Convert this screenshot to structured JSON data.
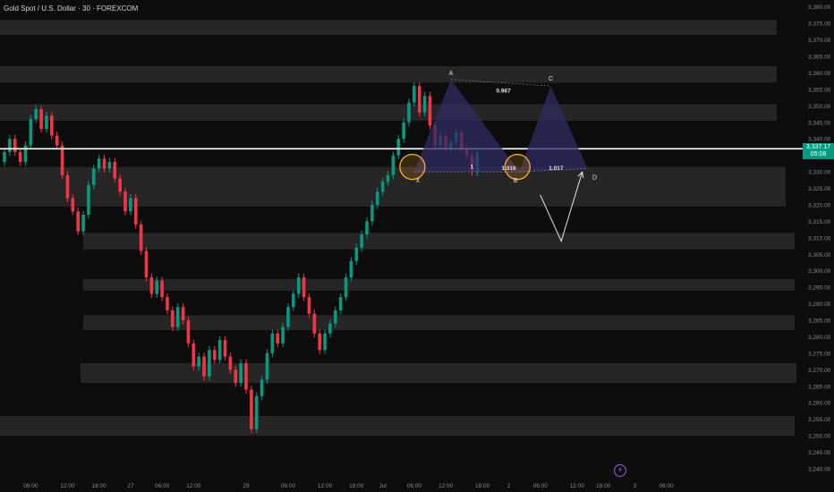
{
  "header": {
    "symbol_title": "Gold Spot / U.S. Dollar · 30 · FOREXCOM"
  },
  "current_price": {
    "price": "3,337.17",
    "countdown": "05:08",
    "value": 3337.17,
    "color": "#089981"
  },
  "timeframe_icon": {
    "name": "lightning-icon",
    "glyph": "⚡"
  },
  "colors": {
    "background": "#0d0d0d",
    "zone": "#2b2b2b",
    "bull": "#089981",
    "bear": "#f23645",
    "pattern_fill": "#2f2b63",
    "circle": "#f5a623",
    "axis_text": "#8a8a8a",
    "label_text": "#e0e0e0"
  },
  "chart_data": {
    "type": "candlestick",
    "title": "Gold Spot / U.S. Dollar · 30 · FOREXCOM",
    "y_axis": {
      "side": "right",
      "range": [
        3240,
        3381
      ],
      "ticks": [
        "3,380.00",
        "3,375.00",
        "3,370.00",
        "3,365.00",
        "3,360.00",
        "3,355.00",
        "3,350.00",
        "3,345.00",
        "3,340.00",
        "3,335.00",
        "3,330.00",
        "3,325.00",
        "3,320.00",
        "3,315.00",
        "3,310.00",
        "3,305.00",
        "3,300.00",
        "3,295.00",
        "3,290.00",
        "3,285.00",
        "3,280.00",
        "3,275.00",
        "3,270.00",
        "3,265.00",
        "3,260.00",
        "3,255.00",
        "3,250.00",
        "3,245.00",
        "3,240.00"
      ]
    },
    "x_axis": {
      "range": [
        0,
        133
      ],
      "ticks": [
        {
          "x": 5,
          "label": "06:00"
        },
        {
          "x": 12,
          "label": "12:00"
        },
        {
          "x": 18,
          "label": "18:00"
        },
        {
          "x": 24,
          "label": "27"
        },
        {
          "x": 30,
          "label": "06:00"
        },
        {
          "x": 36,
          "label": "12:00"
        },
        {
          "x": 46,
          "label": "29"
        },
        {
          "x": 54,
          "label": "06:00"
        },
        {
          "x": 61,
          "label": "12:00"
        },
        {
          "x": 67,
          "label": "18:00"
        },
        {
          "x": 72,
          "label": "Jul"
        },
        {
          "x": 78,
          "label": "06:00"
        },
        {
          "x": 84,
          "label": "12:00"
        },
        {
          "x": 91,
          "label": "18:00"
        },
        {
          "x": 96,
          "label": "2"
        },
        {
          "x": 102,
          "label": "06:00"
        },
        {
          "x": 109,
          "label": "12:00"
        },
        {
          "x": 114,
          "label": "18:00"
        },
        {
          "x": 120,
          "label": "3"
        },
        {
          "x": 126,
          "label": "06:00"
        }
      ]
    },
    "zones": [
      [
        3376,
        3371.5
      ],
      [
        3362,
        3357
      ],
      [
        3350.5,
        3345.5
      ],
      [
        3331.5,
        3319.5
      ],
      [
        3311.5,
        3306.5
      ],
      [
        3297.5,
        3294
      ],
      [
        3286.5,
        3282
      ],
      [
        3272,
        3266
      ],
      [
        3256,
        3250
      ]
    ],
    "horizontal_line": 3337,
    "candles": [
      [
        3333,
        3336
      ],
      [
        3336,
        3340
      ],
      [
        3340,
        3336
      ],
      [
        3336,
        3333
      ],
      [
        3333,
        3338
      ],
      [
        3338,
        3346
      ],
      [
        3346,
        3349
      ],
      [
        3349,
        3343
      ],
      [
        3343,
        3347
      ],
      [
        3347,
        3341
      ],
      [
        3341,
        3338
      ],
      [
        3338,
        3329
      ],
      [
        3329,
        3322
      ],
      [
        3322,
        3318
      ],
      [
        3318,
        3312
      ],
      [
        3312,
        3317
      ],
      [
        3317,
        3326
      ],
      [
        3326,
        3331
      ],
      [
        3331,
        3334
      ],
      [
        3334,
        3331
      ],
      [
        3331,
        3333
      ],
      [
        3333,
        3328
      ],
      [
        3328,
        3324
      ],
      [
        3324,
        3318
      ],
      [
        3318,
        3322
      ],
      [
        3322,
        3314
      ],
      [
        3314,
        3306
      ],
      [
        3306,
        3298
      ],
      [
        3298,
        3293
      ],
      [
        3293,
        3297
      ],
      [
        3297,
        3292
      ],
      [
        3292,
        3288
      ],
      [
        3288,
        3283
      ],
      [
        3283,
        3289
      ],
      [
        3289,
        3285
      ],
      [
        3285,
        3278
      ],
      [
        3278,
        3271
      ],
      [
        3271,
        3274
      ],
      [
        3274,
        3268
      ],
      [
        3268,
        3276
      ],
      [
        3276,
        3273
      ],
      [
        3273,
        3279
      ],
      [
        3279,
        3274
      ],
      [
        3274,
        3270
      ],
      [
        3270,
        3266
      ],
      [
        3266,
        3272
      ],
      [
        3272,
        3264
      ],
      [
        3264,
        3252
      ],
      [
        3252,
        3262
      ],
      [
        3262,
        3267
      ],
      [
        3267,
        3275
      ],
      [
        3275,
        3281
      ],
      [
        3281,
        3278
      ],
      [
        3278,
        3283
      ],
      [
        3283,
        3289
      ],
      [
        3289,
        3293
      ],
      [
        3293,
        3298
      ],
      [
        3298,
        3292
      ],
      [
        3292,
        3287
      ],
      [
        3287,
        3281
      ],
      [
        3281,
        3276
      ],
      [
        3276,
        3281
      ],
      [
        3281,
        3284
      ],
      [
        3284,
        3288
      ],
      [
        3288,
        3292
      ],
      [
        3292,
        3298
      ],
      [
        3298,
        3303
      ],
      [
        3303,
        3307
      ],
      [
        3307,
        3311
      ],
      [
        3311,
        3315
      ],
      [
        3315,
        3320
      ],
      [
        3320,
        3324
      ],
      [
        3324,
        3327
      ],
      [
        3327,
        3329
      ],
      [
        3329,
        3335
      ],
      [
        3335,
        3340
      ],
      [
        3340,
        3345
      ],
      [
        3345,
        3351
      ],
      [
        3351,
        3356
      ],
      [
        3356,
        3348
      ],
      [
        3348,
        3353
      ],
      [
        3353,
        3344
      ],
      [
        3344,
        3338
      ],
      [
        3338,
        3341
      ],
      [
        3341,
        3337
      ],
      [
        3337,
        3339
      ],
      [
        3339,
        3342
      ],
      [
        3342,
        3337
      ],
      [
        3337,
        3335
      ],
      [
        3335,
        3330
      ],
      [
        3330,
        3336
      ]
    ],
    "pattern": {
      "name": "XABCD",
      "points": [
        {
          "label": "X",
          "x": 78,
          "y": 3330
        },
        {
          "label": "A",
          "x": 85,
          "y": 3358
        },
        {
          "label": "B",
          "x": 98,
          "y": 3330
        },
        {
          "label": "C",
          "x": 104,
          "y": 3356
        },
        {
          "label": "D",
          "x": 111,
          "y": 3331
        }
      ],
      "ratios": [
        {
          "text": "0.967",
          "x": 95,
          "y": 3354
        },
        {
          "text": "1",
          "x": 89,
          "y": 3331
        },
        {
          "text": "1.016",
          "x": 96,
          "y": 3330.5
        },
        {
          "text": "1.017",
          "x": 105,
          "y": 3330.5
        }
      ],
      "projection": [
        {
          "x": 102,
          "y": 3323
        },
        {
          "x": 106,
          "y": 3309
        },
        {
          "x": 110,
          "y": 3330
        }
      ]
    }
  }
}
